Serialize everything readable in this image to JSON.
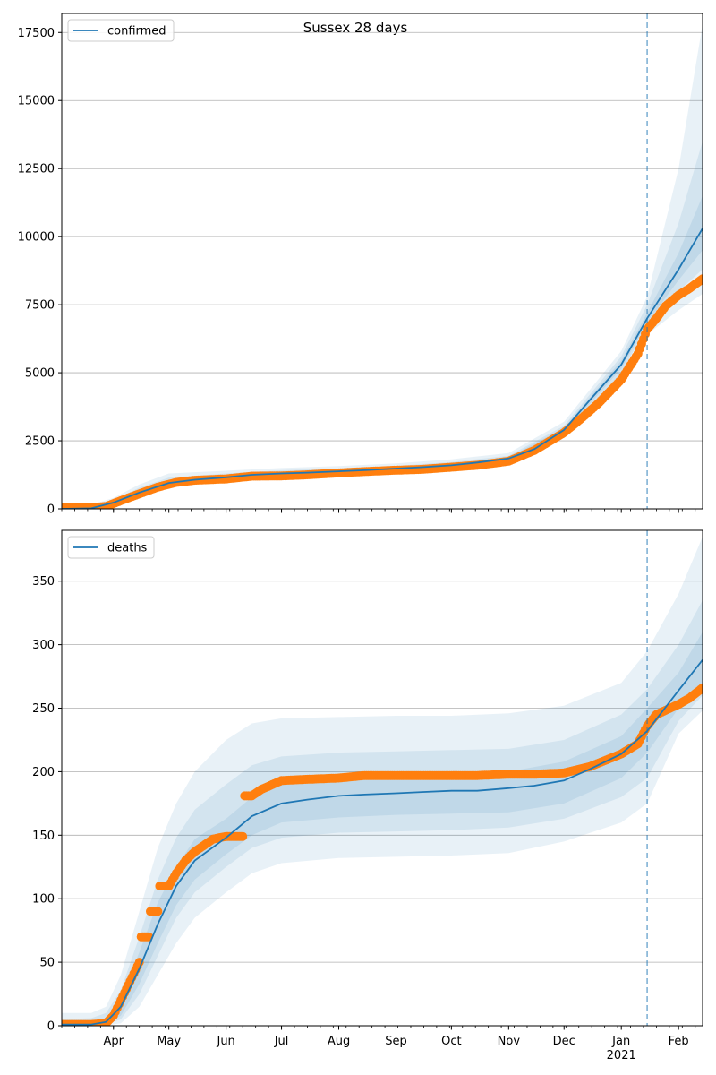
{
  "title": "Sussex 28 days",
  "x_ticks": [
    {
      "label": "Apr",
      "date": "2020-04-01"
    },
    {
      "label": "May",
      "date": "2020-05-01"
    },
    {
      "label": "Jun",
      "date": "2020-06-01"
    },
    {
      "label": "Jul",
      "date": "2020-07-01"
    },
    {
      "label": "Aug",
      "date": "2020-08-01"
    },
    {
      "label": "Sep",
      "date": "2020-09-01"
    },
    {
      "label": "Oct",
      "date": "2020-10-01"
    },
    {
      "label": "Nov",
      "date": "2020-11-01"
    },
    {
      "label": "Dec",
      "date": "2020-12-01"
    },
    {
      "label": "Jan",
      "date": "2021-01-01"
    },
    {
      "label": "Feb",
      "date": "2021-02-01"
    }
  ],
  "x_year_label": "2021",
  "colors": {
    "model_line": "#1f77b4",
    "observed_points": "#ff7f0e",
    "band": "#1f77b4",
    "vline": "#1f77b4",
    "grid": "#b0b0b0"
  },
  "chart_data": [
    {
      "type": "line",
      "title": "Sussex 28 days",
      "xlabel": "",
      "ylabel": "",
      "x_range": [
        "2020-03-04",
        "2021-02-14"
      ],
      "ylim": [
        0,
        18200
      ],
      "yticks": [
        0,
        2500,
        5000,
        7500,
        10000,
        12500,
        15000,
        17500
      ],
      "grid": "horizontal",
      "legend": {
        "position": "top-left",
        "entries": [
          "confirmed"
        ]
      },
      "forecast_start": "2021-01-15",
      "series": [
        {
          "name": "confirmed",
          "kind": "model-line",
          "x": [
            "2020-03-04",
            "2020-03-20",
            "2020-04-01",
            "2020-04-15",
            "2020-05-01",
            "2020-05-15",
            "2020-06-01",
            "2020-06-15",
            "2020-07-01",
            "2020-07-15",
            "2020-08-01",
            "2020-08-15",
            "2020-09-01",
            "2020-09-15",
            "2020-10-01",
            "2020-10-15",
            "2020-11-01",
            "2020-11-15",
            "2020-12-01",
            "2020-12-15",
            "2021-01-01",
            "2021-01-15",
            "2021-02-01",
            "2021-02-14"
          ],
          "y": [
            0,
            20,
            230,
            600,
            950,
            1070,
            1160,
            1250,
            1300,
            1330,
            1380,
            1420,
            1480,
            1530,
            1600,
            1700,
            1850,
            2200,
            2900,
            4000,
            5300,
            7000,
            8800,
            10300
          ]
        },
        {
          "name": "",
          "kind": "observed",
          "x": [
            "2020-03-04",
            "2020-03-20",
            "2020-03-28",
            "2020-04-05",
            "2020-04-15",
            "2020-04-25",
            "2020-05-05",
            "2020-05-15",
            "2020-06-01",
            "2020-06-15",
            "2020-07-01",
            "2020-07-15",
            "2020-08-01",
            "2020-08-15",
            "2020-09-01",
            "2020-09-15",
            "2020-10-01",
            "2020-10-15",
            "2020-11-01",
            "2020-11-15",
            "2020-12-01",
            "2020-12-10",
            "2020-12-20",
            "2021-01-01",
            "2021-01-10",
            "2021-01-15",
            "2021-01-20",
            "2021-01-25",
            "2021-02-01",
            "2021-02-07",
            "2021-02-14"
          ],
          "y": [
            50,
            50,
            90,
            300,
            550,
            800,
            970,
            1050,
            1100,
            1200,
            1210,
            1250,
            1320,
            1370,
            1420,
            1450,
            1530,
            1600,
            1750,
            2150,
            2800,
            3300,
            3900,
            4750,
            5700,
            6600,
            7000,
            7450,
            7850,
            8100,
            8450
          ]
        }
      ],
      "bands": {
        "x": [
          "2020-03-04",
          "2020-03-20",
          "2020-04-01",
          "2020-04-15",
          "2020-05-01",
          "2020-06-01",
          "2020-07-01",
          "2020-08-01",
          "2020-09-01",
          "2020-10-01",
          "2020-11-01",
          "2020-12-01",
          "2021-01-01",
          "2021-01-15",
          "2021-02-01",
          "2021-02-14"
        ],
        "outer_low": [
          0,
          0,
          150,
          450,
          800,
          1000,
          1150,
          1230,
          1330,
          1450,
          1700,
          2600,
          4800,
          6400,
          7300,
          7900
        ],
        "outer_high": [
          100,
          150,
          400,
          900,
          1300,
          1400,
          1500,
          1570,
          1670,
          1820,
          2050,
          3200,
          5800,
          7800,
          12500,
          17800
        ],
        "mid_low": [
          0,
          0,
          180,
          500,
          850,
          1070,
          1220,
          1300,
          1400,
          1500,
          1750,
          2700,
          5000,
          6700,
          8000,
          8800
        ],
        "mid_high": [
          60,
          90,
          320,
          780,
          1150,
          1300,
          1420,
          1480,
          1580,
          1720,
          1950,
          3050,
          5600,
          7500,
          10500,
          13500
        ],
        "inner_low": [
          0,
          5,
          200,
          550,
          900,
          1110,
          1260,
          1340,
          1440,
          1550,
          1800,
          2800,
          5150,
          6850,
          8400,
          9500
        ],
        "inner_high": [
          30,
          50,
          280,
          680,
          1050,
          1230,
          1360,
          1420,
          1520,
          1660,
          1900,
          2980,
          5450,
          7200,
          9400,
          11500
        ]
      }
    },
    {
      "type": "line",
      "title": "",
      "xlabel": "",
      "ylabel": "",
      "x_range": [
        "2020-03-04",
        "2021-02-14"
      ],
      "ylim": [
        0,
        390
      ],
      "yticks": [
        0,
        50,
        100,
        150,
        200,
        250,
        300,
        350
      ],
      "grid": "horizontal",
      "legend": {
        "position": "top-left",
        "entries": [
          "deaths"
        ]
      },
      "forecast_start": "2021-01-15",
      "series": [
        {
          "name": "deaths",
          "kind": "model-line",
          "x": [
            "2020-03-04",
            "2020-03-20",
            "2020-03-28",
            "2020-04-05",
            "2020-04-15",
            "2020-04-25",
            "2020-05-05",
            "2020-05-15",
            "2020-06-01",
            "2020-06-15",
            "2020-07-01",
            "2020-07-15",
            "2020-08-01",
            "2020-08-15",
            "2020-09-01",
            "2020-09-15",
            "2020-10-01",
            "2020-10-15",
            "2020-11-01",
            "2020-11-15",
            "2020-12-01",
            "2020-12-15",
            "2021-01-01",
            "2021-01-15",
            "2021-02-01",
            "2021-02-14"
          ],
          "y": [
            1,
            1,
            3,
            15,
            45,
            80,
            110,
            130,
            148,
            165,
            175,
            178,
            181,
            182,
            183,
            184,
            185,
            185,
            187,
            189,
            193,
            202,
            214,
            232,
            264,
            288
          ]
        },
        {
          "name": "",
          "kind": "observed",
          "x": [
            "2020-03-04",
            "2020-03-20",
            "2020-03-28",
            "2020-04-01",
            "2020-04-05",
            "2020-04-10",
            "2020-04-15",
            "2020-04-20",
            "2020-04-25",
            "2020-05-01",
            "2020-05-05",
            "2020-05-10",
            "2020-05-15",
            "2020-05-20",
            "2020-05-25",
            "2020-06-01",
            "2020-06-10",
            "2020-06-15",
            "2020-06-20",
            "2020-07-01",
            "2020-07-15",
            "2020-08-01",
            "2020-08-15",
            "2020-09-01",
            "2020-09-15",
            "2020-10-01",
            "2020-10-15",
            "2020-11-01",
            "2020-11-15",
            "2020-12-01",
            "2020-12-15",
            "2021-01-01",
            "2021-01-10",
            "2021-01-15",
            "2021-01-20",
            "2021-02-01",
            "2021-02-07",
            "2021-02-14"
          ],
          "y": [
            1,
            1,
            2,
            8,
            20,
            35,
            50,
            70,
            90,
            110,
            120,
            130,
            137,
            142,
            147,
            149,
            149,
            181,
            186,
            193,
            194,
            195,
            197,
            197,
            197,
            197,
            197,
            198,
            198,
            199,
            204,
            214,
            222,
            236,
            245,
            253,
            258,
            266
          ]
        }
      ],
      "bands": {
        "x": [
          "2020-03-04",
          "2020-03-20",
          "2020-03-28",
          "2020-04-05",
          "2020-04-15",
          "2020-04-25",
          "2020-05-05",
          "2020-05-15",
          "2020-06-01",
          "2020-06-15",
          "2020-07-01",
          "2020-08-01",
          "2020-09-01",
          "2020-10-01",
          "2020-11-01",
          "2020-12-01",
          "2021-01-01",
          "2021-01-15",
          "2021-02-01",
          "2021-02-14"
        ],
        "outer_low": [
          0,
          0,
          0,
          2,
          15,
          40,
          65,
          85,
          105,
          120,
          128,
          132,
          133,
          134,
          136,
          145,
          160,
          175,
          230,
          248
        ],
        "outer_high": [
          10,
          10,
          15,
          40,
          90,
          140,
          175,
          200,
          225,
          238,
          242,
          243,
          244,
          244,
          246,
          252,
          270,
          295,
          340,
          385
        ],
        "mid_low": [
          0,
          0,
          1,
          5,
          25,
          55,
          85,
          105,
          125,
          140,
          148,
          152,
          153,
          154,
          156,
          163,
          180,
          195,
          240,
          260
        ],
        "mid_high": [
          5,
          6,
          10,
          28,
          70,
          115,
          148,
          170,
          190,
          205,
          212,
          215,
          216,
          217,
          218,
          225,
          245,
          265,
          300,
          335
        ],
        "inner_low": [
          0,
          0,
          2,
          8,
          33,
          65,
          95,
          115,
          135,
          150,
          160,
          164,
          166,
          167,
          168,
          175,
          195,
          215,
          250,
          270
        ],
        "inner_high": [
          3,
          3,
          6,
          20,
          58,
          97,
          125,
          147,
          163,
          180,
          190,
          195,
          197,
          198,
          200,
          208,
          228,
          250,
          278,
          310
        ]
      }
    }
  ]
}
